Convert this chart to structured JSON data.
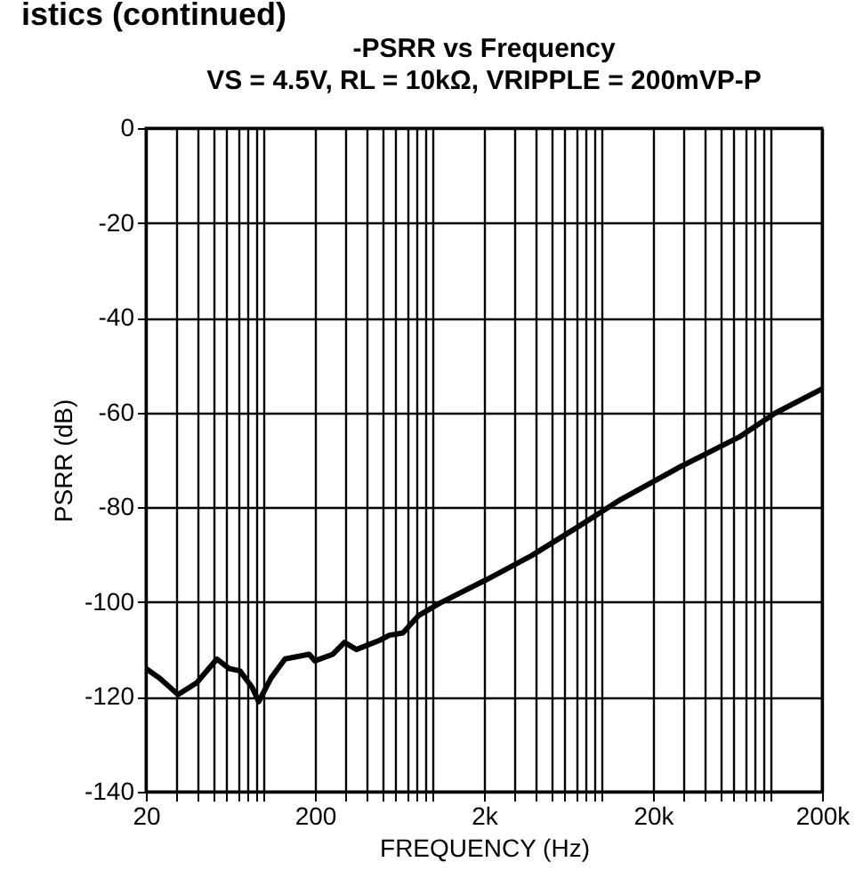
{
  "chart_data": {
    "type": "line",
    "title": "-PSRR vs Frequency",
    "subtitle": "VS = 4.5V, RL = 10kΩ, VRIPPLE = 200mVP-P",
    "xlabel": "FREQUENCY (Hz)",
    "ylabel": "PSRR (dB)",
    "annotations": [
      "istics (continued)"
    ],
    "log": "x",
    "grid": true,
    "marker": "none",
    "line_style": "solid",
    "xlim": [
      20,
      200000
    ],
    "ylim": [
      -140,
      0
    ],
    "xticks": [
      {
        "value": 20,
        "label": "20"
      },
      {
        "value": 30,
        "label": null
      },
      {
        "value": 40,
        "label": null
      },
      {
        "value": 50,
        "label": null
      },
      {
        "value": 60,
        "label": null
      },
      {
        "value": 70,
        "label": null
      },
      {
        "value": 80,
        "label": null
      },
      {
        "value": 90,
        "label": null
      },
      {
        "value": 100,
        "label": null
      },
      {
        "value": 200,
        "label": "200"
      },
      {
        "value": 300,
        "label": null
      },
      {
        "value": 400,
        "label": null
      },
      {
        "value": 500,
        "label": null
      },
      {
        "value": 600,
        "label": null
      },
      {
        "value": 700,
        "label": null
      },
      {
        "value": 800,
        "label": null
      },
      {
        "value": 900,
        "label": null
      },
      {
        "value": 1000,
        "label": null
      },
      {
        "value": 2000,
        "label": "2k"
      },
      {
        "value": 3000,
        "label": null
      },
      {
        "value": 4000,
        "label": null
      },
      {
        "value": 5000,
        "label": null
      },
      {
        "value": 6000,
        "label": null
      },
      {
        "value": 7000,
        "label": null
      },
      {
        "value": 8000,
        "label": null
      },
      {
        "value": 9000,
        "label": null
      },
      {
        "value": 10000,
        "label": null
      },
      {
        "value": 20000,
        "label": "20k"
      },
      {
        "value": 30000,
        "label": null
      },
      {
        "value": 40000,
        "label": null
      },
      {
        "value": 50000,
        "label": null
      },
      {
        "value": 60000,
        "label": null
      },
      {
        "value": 70000,
        "label": null
      },
      {
        "value": 80000,
        "label": null
      },
      {
        "value": 90000,
        "label": null
      },
      {
        "value": 100000,
        "label": null
      },
      {
        "value": 200000,
        "label": "200k"
      }
    ],
    "yticks": [
      -140,
      -120,
      -100,
      -80,
      -60,
      -40,
      -20,
      0
    ],
    "x": [
      20,
      24,
      31,
      40,
      52.6,
      62,
      72,
      85,
      93,
      110,
      133,
      185,
      200,
      255,
      299,
      352,
      487,
      550,
      663,
      822,
      1100,
      2085,
      3820,
      7280,
      12800,
      28800,
      64500,
      104800,
      200000
    ],
    "series": [
      {
        "color": "#000000",
        "values": [
          -114,
          -116,
          -119.5,
          -117,
          -112,
          -114,
          -114.5,
          -118,
          -121,
          -116,
          -112,
          -111,
          -112.4,
          -111,
          -108.5,
          -110,
          -108,
          -107,
          -106.5,
          -102.8,
          -100.2,
          -95.2,
          -90.2,
          -84,
          -78.4,
          -71.5,
          -65.2,
          -60.2,
          -55
        ]
      }
    ]
  }
}
